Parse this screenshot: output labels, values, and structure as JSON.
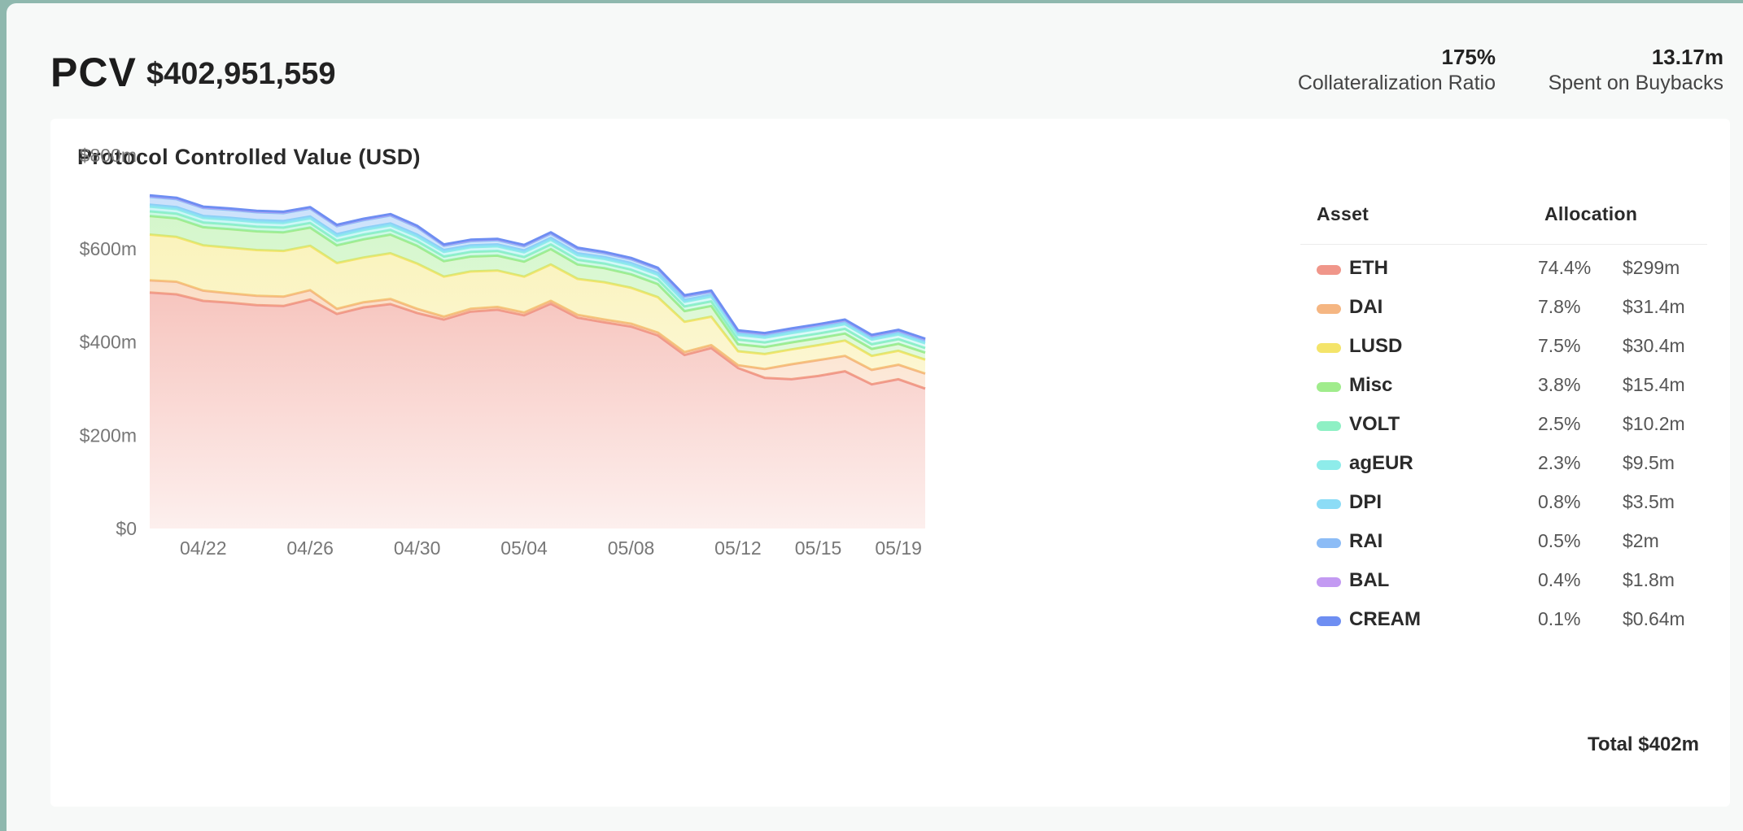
{
  "header": {
    "title": "PCV",
    "value": "$402,951,559",
    "stats": [
      {
        "value": "175%",
        "label": "Collateralization Ratio"
      },
      {
        "value": "13.17m",
        "label": "Spent on Buybacks"
      }
    ]
  },
  "card": {
    "title": "Protocol Controlled Value (USD)"
  },
  "legend": {
    "asset_header": "Asset",
    "allocation_header": "Allocation",
    "total": "Total $402m",
    "items": [
      {
        "name": "ETH",
        "pct": "74.4%",
        "value": "$299m",
        "color": "#f0968a"
      },
      {
        "name": "DAI",
        "pct": "7.8%",
        "value": "$31.4m",
        "color": "#f5b682"
      },
      {
        "name": "LUSD",
        "pct": "7.5%",
        "value": "$30.4m",
        "color": "#f4e46a"
      },
      {
        "name": "Misc",
        "pct": "3.8%",
        "value": "$15.4m",
        "color": "#a0ec8c"
      },
      {
        "name": "VOLT",
        "pct": "2.5%",
        "value": "$10.2m",
        "color": "#8ef0c4"
      },
      {
        "name": "agEUR",
        "pct": "2.3%",
        "value": "$9.5m",
        "color": "#8eecea"
      },
      {
        "name": "DPI",
        "pct": "0.8%",
        "value": "$3.5m",
        "color": "#8cdcf6"
      },
      {
        "name": "RAI",
        "pct": "0.5%",
        "value": "$2m",
        "color": "#8cbcf6"
      },
      {
        "name": "BAL",
        "pct": "0.4%",
        "value": "$1.8m",
        "color": "#c39af2"
      },
      {
        "name": "CREAM",
        "pct": "0.1%",
        "value": "$0.64m",
        "color": "#6e8ef2"
      }
    ]
  },
  "chart_data": {
    "type": "area",
    "stacked": true,
    "title": "Protocol Controlled Value (USD)",
    "ylim": [
      0,
      800
    ],
    "y_ticks": [
      0,
      200,
      400,
      600,
      800
    ],
    "y_tick_labels": [
      "$0",
      "$200m",
      "$400m",
      "$600m",
      "$800m"
    ],
    "x_tick_labels": [
      {
        "x": 5,
        "label": "04/22"
      },
      {
        "x": 9,
        "label": "04/26"
      },
      {
        "x": 13,
        "label": "04/30"
      },
      {
        "x": 17,
        "label": "05/04"
      },
      {
        "x": 21,
        "label": "05/08"
      },
      {
        "x": 25,
        "label": "05/12"
      },
      {
        "x": 28,
        "label": "05/15"
      },
      {
        "x": 31,
        "label": "05/19"
      }
    ],
    "x": [
      3,
      4,
      5,
      6,
      7,
      8,
      9,
      10,
      11,
      12,
      13,
      14,
      15,
      16,
      17,
      18,
      19,
      20,
      21,
      22,
      23,
      24,
      25,
      26,
      27,
      28,
      29,
      30,
      31,
      32
    ],
    "series": [
      {
        "name": "ETH",
        "color": "#f0968a",
        "values": [
          506,
          502,
          488,
          484,
          479,
          477,
          491,
          460,
          474,
          481,
          462,
          448,
          465,
          469,
          457,
          482,
          452,
          442,
          433,
          414,
          372,
          387,
          344,
          323,
          320,
          327,
          337,
          309,
          320,
          300
        ]
      },
      {
        "name": "DAI",
        "color": "#f5b682",
        "values": [
          26,
          27,
          22,
          20,
          20,
          20,
          20,
          11,
          11,
          11,
          9,
          6,
          6,
          6,
          6,
          6,
          6,
          6,
          6,
          6,
          6,
          6,
          6,
          19,
          32,
          34,
          33,
          31,
          31,
          32
        ]
      },
      {
        "name": "LUSD",
        "color": "#f4e46a",
        "values": [
          98,
          96,
          97,
          98,
          98,
          98,
          95,
          98,
          96,
          98,
          97,
          86,
          80,
          78,
          77,
          78,
          77,
          80,
          77,
          76,
          65,
          61,
          30,
          32,
          32,
          32,
          33,
          30,
          30,
          30
        ]
      },
      {
        "name": "Misc",
        "color": "#a0ec8c",
        "values": [
          40,
          40,
          39,
          40,
          40,
          40,
          39,
          38,
          39,
          40,
          38,
          33,
          32,
          32,
          32,
          33,
          31,
          30,
          29,
          28,
          23,
          23,
          15,
          15,
          15,
          15,
          15,
          15,
          15,
          15
        ]
      },
      {
        "name": "VOLT",
        "color": "#8ef0c4",
        "values": [
          10,
          10,
          10,
          10,
          10,
          10,
          10,
          10,
          10,
          10,
          10,
          10,
          10,
          10,
          10,
          10,
          10,
          10,
          10,
          10,
          10,
          10,
          10,
          10,
          10,
          10,
          10,
          10,
          10,
          10
        ]
      },
      {
        "name": "agEUR",
        "color": "#8eecea",
        "values": [
          10,
          10,
          10,
          10,
          10,
          10,
          10,
          10,
          10,
          10,
          10,
          10,
          10,
          10,
          10,
          10,
          10,
          10,
          10,
          10,
          10,
          10,
          10,
          10,
          10,
          10,
          10,
          10,
          10,
          10
        ]
      },
      {
        "name": "DPI",
        "color": "#8cdcf6",
        "values": [
          4,
          4,
          4,
          4,
          4,
          4,
          4,
          4,
          4,
          4,
          4,
          4,
          4,
          4,
          4,
          4,
          4,
          4,
          4,
          4,
          4,
          4,
          4,
          4,
          4,
          4,
          4,
          4,
          4,
          4
        ]
      },
      {
        "name": "RAI",
        "color": "#8cbcf6",
        "values": [
          17,
          17,
          17,
          17,
          17,
          17,
          17,
          17,
          17,
          17,
          16,
          9,
          9,
          9,
          9,
          9,
          9,
          8,
          8,
          8,
          7,
          6,
          3,
          3,
          3,
          3,
          3,
          3,
          3,
          3
        ]
      },
      {
        "name": "BAL",
        "color": "#c39af2",
        "values": [
          2,
          2,
          2,
          2,
          2,
          2,
          2,
          2,
          2,
          2,
          2,
          2,
          2,
          2,
          2,
          2,
          2,
          2,
          2,
          2,
          2,
          2,
          2,
          2,
          2,
          2,
          2,
          2,
          2,
          2
        ]
      },
      {
        "name": "CREAM",
        "color": "#6e8ef2",
        "values": [
          1,
          1,
          1,
          1,
          1,
          1,
          1,
          1,
          1,
          1,
          1,
          1,
          1,
          1,
          1,
          1,
          1,
          1,
          1,
          1,
          1,
          1,
          1,
          1,
          1,
          1,
          1,
          1,
          1,
          1
        ]
      }
    ],
    "grid": false,
    "legend_position": "right"
  }
}
